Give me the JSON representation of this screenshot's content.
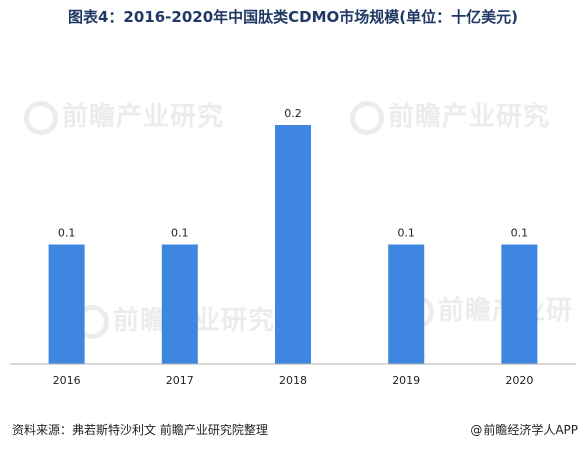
{
  "title": "图表4：2016-2020年中国肽类CDMO市场规模(单位：十亿美元)",
  "source": "资料来源：弗若斯特沙利文 前瞻产业研究院整理",
  "credit": "前瞻经济学人APP",
  "credit_icon": "at-icon",
  "watermark": "前瞻产业研究",
  "colors": {
    "bar": "#3f86e0",
    "title": "#1f3864",
    "axis": "#b0b0b0"
  },
  "chart_data": {
    "type": "bar",
    "categories": [
      "2016",
      "2017",
      "2018",
      "2019",
      "2020"
    ],
    "values": [
      0.1,
      0.1,
      0.2,
      0.1,
      0.1
    ],
    "data_labels": [
      "0.1",
      "0.1",
      "0.2",
      "0.1",
      "0.1"
    ],
    "title": "图表4：2016-2020年中国肽类CDMO市场规模(单位：十亿美元)",
    "xlabel": "",
    "ylabel": "",
    "ylim": [
      0,
      0.2
    ],
    "grid": false,
    "legend": "none"
  }
}
